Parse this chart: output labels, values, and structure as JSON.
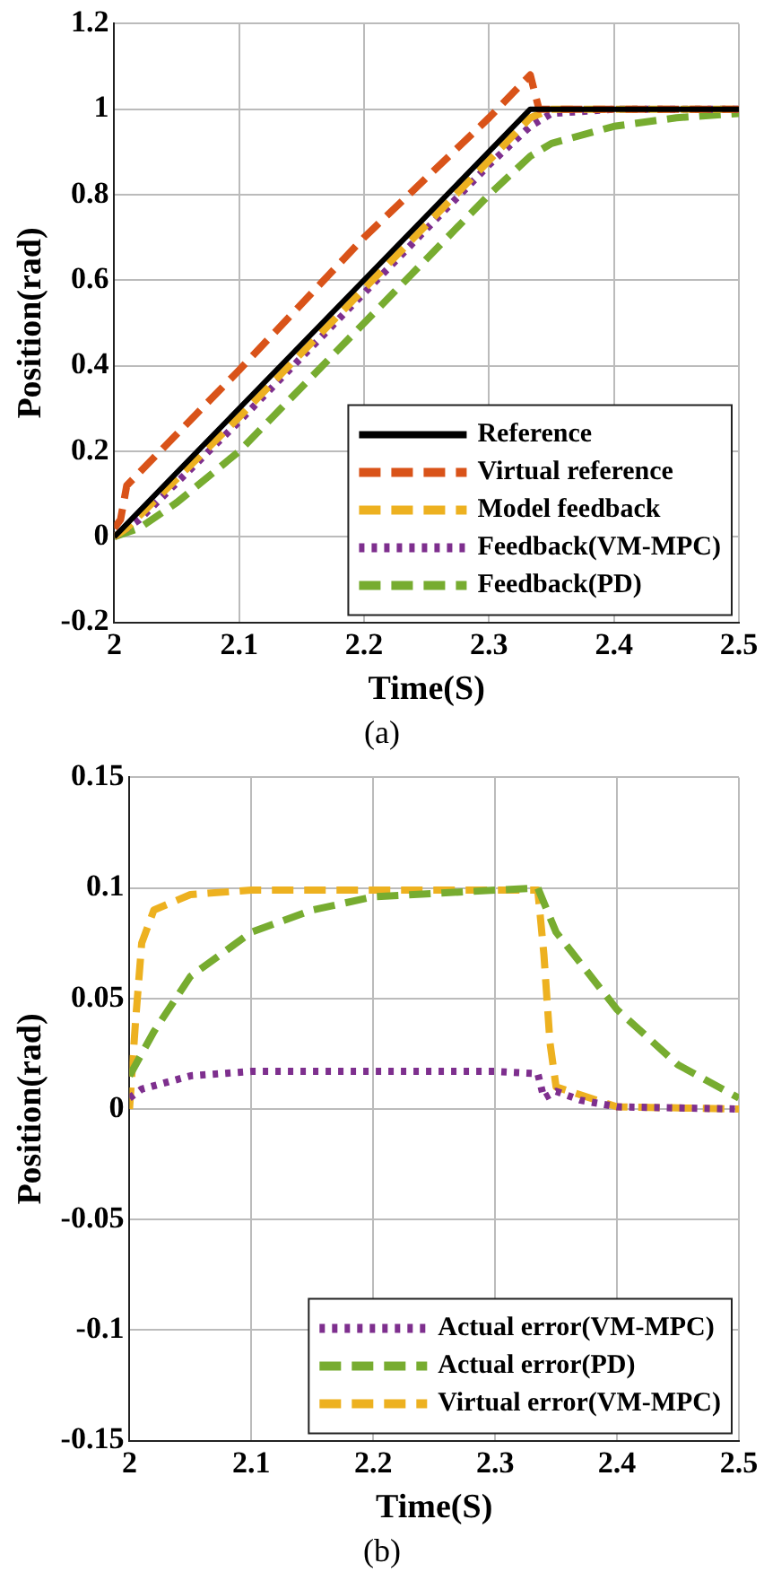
{
  "chart_data": [
    {
      "type": "line",
      "xlabel": "Time(S)",
      "ylabel": "Position(rad)",
      "annotations": [
        "(a)"
      ],
      "xlim": [
        2,
        2.5
      ],
      "xticks": [
        2,
        2.1,
        2.2,
        2.3,
        2.4,
        2.5
      ],
      "ylim": [
        -0.2,
        1.2
      ],
      "yticks": [
        -0.2,
        0,
        0.2,
        0.4,
        0.6,
        0.8,
        1,
        1.2
      ],
      "grid": true,
      "legend": "bottom right",
      "marker": "none",
      "series": [
        {
          "name": "Reference",
          "color": "#000000",
          "line_style": "solid",
          "x": [
            2,
            2.333,
            2.5
          ],
          "values": [
            0,
            1,
            1
          ]
        },
        {
          "name": "Virtual reference",
          "color": "#d95319",
          "line_style": "dashed",
          "x": [
            2,
            2.005,
            2.01,
            2.1,
            2.2,
            2.3,
            2.333,
            2.34,
            2.5
          ],
          "values": [
            0.02,
            0.04,
            0.12,
            0.39,
            0.7,
            0.98,
            1.08,
            1,
            1
          ]
        },
        {
          "name": "Model feedback",
          "color": "#edb120",
          "line_style": "dashed",
          "x": [
            2,
            2.01,
            2.1,
            2.2,
            2.3,
            2.333,
            2.35,
            2.5
          ],
          "values": [
            0,
            0.02,
            0.28,
            0.58,
            0.88,
            0.98,
            1,
            1
          ]
        },
        {
          "name": "Feedback(VM-MPC)",
          "color": "#7e2f8e",
          "line_style": "dotted",
          "x": [
            2,
            2.02,
            2.1,
            2.2,
            2.3,
            2.333,
            2.35,
            2.4,
            2.5
          ],
          "values": [
            0,
            0.04,
            0.27,
            0.57,
            0.87,
            0.96,
            0.99,
            1,
            1
          ]
        },
        {
          "name": "Feedback(PD)",
          "color": "#77ac30",
          "line_style": "dashed",
          "x": [
            2,
            2.02,
            2.05,
            2.1,
            2.2,
            2.3,
            2.333,
            2.35,
            2.4,
            2.45,
            2.5
          ],
          "values": [
            0,
            0.02,
            0.08,
            0.2,
            0.5,
            0.8,
            0.89,
            0.92,
            0.96,
            0.98,
            0.99
          ]
        }
      ]
    },
    {
      "type": "line",
      "xlabel": "Time(S)",
      "ylabel": "Position(rad)",
      "annotations": [
        "(b)"
      ],
      "xlim": [
        2,
        2.5
      ],
      "xticks": [
        2,
        2.1,
        2.2,
        2.3,
        2.4,
        2.5
      ],
      "ylim": [
        -0.15,
        0.15
      ],
      "yticks": [
        -0.15,
        -0.1,
        -0.05,
        0,
        0.05,
        0.1,
        0.15
      ],
      "grid": true,
      "legend": "bottom right",
      "marker": "none",
      "series": [
        {
          "name": "Actual error(VM-MPC)",
          "color": "#7e2f8e",
          "line_style": "dotted",
          "x": [
            2,
            2.01,
            2.05,
            2.1,
            2.3,
            2.335,
            2.34,
            2.35,
            2.37,
            2.4,
            2.5
          ],
          "values": [
            0.005,
            0.009,
            0.015,
            0.017,
            0.017,
            0.016,
            0.005,
            0.008,
            0.004,
            0.001,
            0
          ]
        },
        {
          "name": "Actual error(PD)",
          "color": "#77ac30",
          "line_style": "dashed",
          "x": [
            2,
            2.02,
            2.05,
            2.1,
            2.15,
            2.2,
            2.3,
            2.335,
            2.35,
            2.4,
            2.45,
            2.5
          ],
          "values": [
            0.015,
            0.035,
            0.06,
            0.08,
            0.09,
            0.096,
            0.099,
            0.1,
            0.08,
            0.045,
            0.02,
            0.005
          ]
        },
        {
          "name": "Virtual error(VM-MPC)",
          "color": "#edb120",
          "line_style": "dashed",
          "x": [
            2,
            2.005,
            2.01,
            2.02,
            2.05,
            2.1,
            2.335,
            2.34,
            2.345,
            2.35,
            2.4,
            2.5
          ],
          "values": [
            0,
            0.04,
            0.075,
            0.09,
            0.097,
            0.099,
            0.099,
            0.07,
            0.03,
            0.01,
            0.001,
            0
          ]
        }
      ]
    }
  ]
}
